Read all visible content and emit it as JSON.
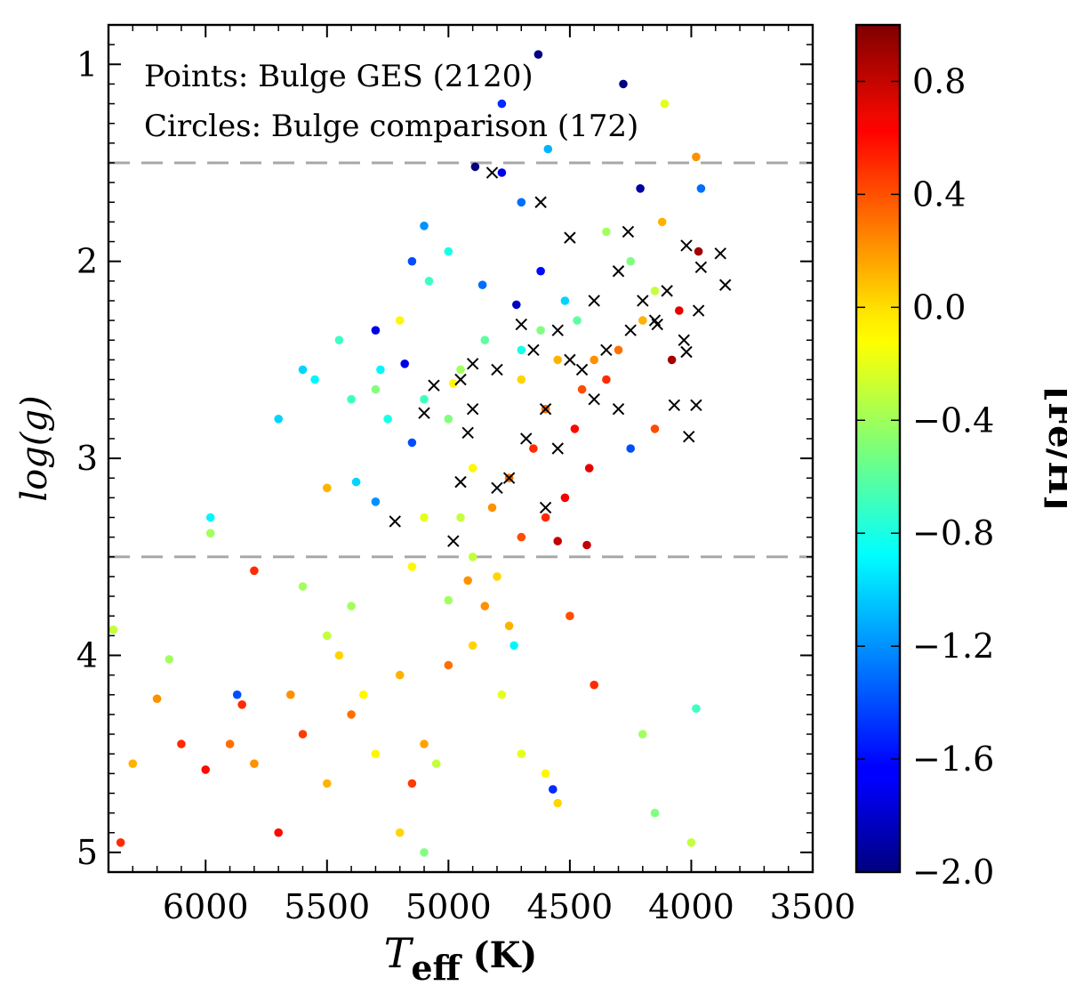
{
  "chart_data": {
    "type": "scatter",
    "annotations": [
      "Points: Bulge GES (2120)",
      "Circles: Bulge comparison (172)"
    ],
    "xlabel": {
      "main": "T",
      "sub": "eff",
      "unit": " (K)"
    },
    "ylabel": "log(g)",
    "xlim": [
      6400,
      3500
    ],
    "ylim": [
      0.8,
      5.1
    ],
    "x_ticks": [
      6000,
      5500,
      5000,
      4500,
      4000,
      3500
    ],
    "x_tick_labels": [
      "6000",
      "5500",
      "5000",
      "4500",
      "4000",
      "3500"
    ],
    "y_ticks": [
      1,
      2,
      3,
      4,
      5
    ],
    "y_tick_labels": [
      "1",
      "2",
      "3",
      "4",
      "5"
    ],
    "hlines": [
      1.5,
      3.5
    ],
    "hline_color": "#a8a8a8",
    "colorbar": {
      "label": "[Fe/H]",
      "vmin": -2.0,
      "vmax": 1.0,
      "colormap": "jet",
      "ticks": [
        -2.0,
        -1.6,
        -1.2,
        -0.8,
        -0.4,
        0.0,
        0.4,
        0.8
      ],
      "tick_labels": [
        "−2.0",
        "−1.6",
        "−1.2",
        "−0.8",
        "−0.4",
        "0.0",
        "0.4",
        "0.8"
      ]
    },
    "series": [
      {
        "name": "Bulge GES",
        "marker": "filled-circle",
        "count": 2120,
        "sample_points": [
          [
            4630,
            0.95,
            -2.0
          ],
          [
            4280,
            1.1,
            -2.0
          ],
          [
            4110,
            1.2,
            -0.2
          ],
          [
            4780,
            1.2,
            -1.5
          ],
          [
            3980,
            1.47,
            0.2
          ],
          [
            4890,
            1.52,
            -2.0
          ],
          [
            4590,
            1.43,
            -1.1
          ],
          [
            3960,
            1.63,
            -1.3
          ],
          [
            4210,
            1.63,
            -1.9
          ],
          [
            4700,
            1.7,
            -1.3
          ],
          [
            4780,
            1.55,
            -1.7
          ],
          [
            5100,
            1.82,
            -1.2
          ],
          [
            5000,
            1.95,
            -0.8
          ],
          [
            5150,
            2.0,
            -1.4
          ],
          [
            5080,
            2.1,
            -0.7
          ],
          [
            5300,
            2.35,
            -1.7
          ],
          [
            5280,
            2.55,
            -0.9
          ],
          [
            5600,
            2.55,
            -1.0
          ],
          [
            5700,
            2.8,
            -1.0
          ],
          [
            5550,
            2.6,
            -0.9
          ],
          [
            5180,
            2.52,
            -1.7
          ],
          [
            5200,
            2.3,
            -0.1
          ],
          [
            4860,
            2.12,
            -1.3
          ],
          [
            4720,
            2.22,
            -1.8
          ],
          [
            4620,
            2.05,
            -1.6
          ],
          [
            4520,
            2.2,
            -1.0
          ],
          [
            4470,
            2.3,
            -0.6
          ],
          [
            4400,
            2.5,
            0.2
          ],
          [
            4350,
            2.6,
            0.5
          ],
          [
            4480,
            2.85,
            0.6
          ],
          [
            4420,
            3.05,
            0.7
          ],
          [
            4520,
            3.2,
            0.65
          ],
          [
            4600,
            3.3,
            0.5
          ],
          [
            4550,
            3.42,
            0.8
          ],
          [
            4430,
            3.44,
            0.8
          ],
          [
            4700,
            3.4,
            0.4
          ],
          [
            4820,
            3.25,
            0.2
          ],
          [
            4900,
            3.05,
            -0.1
          ],
          [
            5000,
            2.8,
            -0.5
          ],
          [
            5100,
            2.7,
            -0.7
          ],
          [
            4950,
            2.55,
            -0.4
          ],
          [
            4850,
            2.4,
            -0.6
          ],
          [
            4700,
            2.6,
            0.0
          ],
          [
            4600,
            2.75,
            0.3
          ],
          [
            4650,
            2.95,
            0.5
          ],
          [
            4750,
            3.1,
            0.3
          ],
          [
            4550,
            2.5,
            0.1
          ],
          [
            4450,
            2.65,
            0.4
          ],
          [
            4300,
            2.45,
            0.3
          ],
          [
            4200,
            2.3,
            0.1
          ],
          [
            4150,
            2.15,
            -0.3
          ],
          [
            4250,
            2.0,
            -0.5
          ],
          [
            4350,
            1.85,
            -0.4
          ],
          [
            4050,
            2.25,
            0.7
          ],
          [
            4080,
            2.5,
            0.9
          ],
          [
            3970,
            1.95,
            0.9
          ],
          [
            4120,
            1.8,
            0.1
          ],
          [
            4250,
            2.95,
            -1.4
          ],
          [
            4150,
            2.85,
            0.4
          ],
          [
            4900,
            3.5,
            -0.3
          ],
          [
            4800,
            3.6,
            0.0
          ],
          [
            4850,
            3.75,
            0.2
          ],
          [
            4750,
            3.85,
            0.1
          ],
          [
            4900,
            3.95,
            0.0
          ],
          [
            5000,
            4.05,
            0.3
          ],
          [
            4780,
            4.2,
            -0.2
          ],
          [
            4700,
            4.5,
            -0.2
          ],
          [
            4600,
            4.6,
            -0.1
          ],
          [
            4550,
            4.75,
            0.0
          ],
          [
            4400,
            4.15,
            0.5
          ],
          [
            4200,
            4.4,
            -0.4
          ],
          [
            4150,
            4.8,
            -0.5
          ],
          [
            4000,
            4.95,
            -0.3
          ],
          [
            3980,
            4.27,
            -0.7
          ],
          [
            4570,
            4.68,
            -1.5
          ],
          [
            5050,
            4.55,
            -0.3
          ],
          [
            5150,
            4.65,
            0.45
          ],
          [
            5200,
            4.9,
            0.0
          ],
          [
            5100,
            5.0,
            -0.5
          ],
          [
            5300,
            4.5,
            -0.1
          ],
          [
            5400,
            4.3,
            0.3
          ],
          [
            5500,
            4.65,
            0.1
          ],
          [
            5600,
            4.4,
            0.45
          ],
          [
            5650,
            4.2,
            0.2
          ],
          [
            5700,
            4.9,
            0.6
          ],
          [
            5800,
            4.55,
            0.2
          ],
          [
            5850,
            4.25,
            0.5
          ],
          [
            5870,
            4.2,
            -1.4
          ],
          [
            5900,
            4.45,
            0.3
          ],
          [
            6000,
            4.58,
            0.6
          ],
          [
            6100,
            4.45,
            0.5
          ],
          [
            6150,
            4.02,
            -0.4
          ],
          [
            6200,
            4.22,
            0.2
          ],
          [
            6300,
            4.55,
            0.1
          ],
          [
            6350,
            4.95,
            0.5
          ],
          [
            6380,
            3.87,
            -0.3
          ],
          [
            5980,
            3.3,
            -0.9
          ],
          [
            5980,
            3.38,
            -0.4
          ],
          [
            5800,
            3.57,
            0.5
          ],
          [
            5600,
            3.65,
            -0.4
          ],
          [
            5500,
            3.9,
            -0.3
          ],
          [
            5400,
            3.75,
            -0.4
          ],
          [
            5450,
            4.0,
            0.0
          ],
          [
            5350,
            4.2,
            -0.1
          ],
          [
            5200,
            4.1,
            0.1
          ],
          [
            5100,
            4.45,
            0.15
          ],
          [
            5300,
            3.22,
            -1.2
          ],
          [
            5380,
            3.12,
            -1.0
          ],
          [
            5500,
            3.15,
            0.1
          ],
          [
            5150,
            3.55,
            -0.1
          ],
          [
            5100,
            3.3,
            -0.2
          ],
          [
            4950,
            3.3,
            -0.3
          ],
          [
            4920,
            3.62,
            0.2
          ],
          [
            5000,
            3.72,
            -0.4
          ],
          [
            4730,
            3.95,
            -0.9
          ],
          [
            4500,
            3.8,
            0.4
          ],
          [
            5250,
            2.8,
            -0.8
          ],
          [
            5300,
            2.65,
            -0.5
          ],
          [
            5400,
            2.7,
            -0.7
          ],
          [
            5450,
            2.4,
            -0.7
          ],
          [
            5150,
            2.92,
            -1.4
          ],
          [
            4980,
            2.62,
            -0.1
          ],
          [
            4700,
            2.45,
            -0.8
          ],
          [
            4620,
            2.35,
            -0.5
          ]
        ]
      },
      {
        "name": "Bulge comparison",
        "marker": "x",
        "count": 172,
        "color": "#000000",
        "sample_points": [
          [
            4820,
            1.55
          ],
          [
            4620,
            1.7
          ],
          [
            4260,
            1.85
          ],
          [
            4020,
            1.92
          ],
          [
            3880,
            1.96
          ],
          [
            3960,
            2.03
          ],
          [
            3860,
            2.12
          ],
          [
            4100,
            2.15
          ],
          [
            3970,
            2.25
          ],
          [
            4140,
            2.32
          ],
          [
            4030,
            2.4
          ],
          [
            4020,
            2.46
          ],
          [
            4070,
            2.73
          ],
          [
            3980,
            2.73
          ],
          [
            4010,
            2.89
          ],
          [
            4500,
            1.88
          ],
          [
            4300,
            2.05
          ],
          [
            4200,
            2.2
          ],
          [
            4400,
            2.2
          ],
          [
            4550,
            2.35
          ],
          [
            4700,
            2.32
          ],
          [
            4650,
            2.45
          ],
          [
            4500,
            2.5
          ],
          [
            4800,
            2.55
          ],
          [
            4900,
            2.52
          ],
          [
            4950,
            2.6
          ],
          [
            5060,
            2.63
          ],
          [
            5100,
            2.77
          ],
          [
            4900,
            2.75
          ],
          [
            4920,
            2.87
          ],
          [
            4680,
            2.9
          ],
          [
            4550,
            2.95
          ],
          [
            4600,
            3.25
          ],
          [
            4750,
            3.1
          ],
          [
            4800,
            3.15
          ],
          [
            4950,
            3.12
          ],
          [
            5220,
            3.32
          ],
          [
            4980,
            3.42
          ],
          [
            4400,
            2.7
          ],
          [
            4300,
            2.75
          ],
          [
            4250,
            2.35
          ],
          [
            4150,
            2.3
          ],
          [
            4600,
            2.75
          ],
          [
            4450,
            2.55
          ],
          [
            4350,
            2.45
          ]
        ]
      }
    ]
  }
}
